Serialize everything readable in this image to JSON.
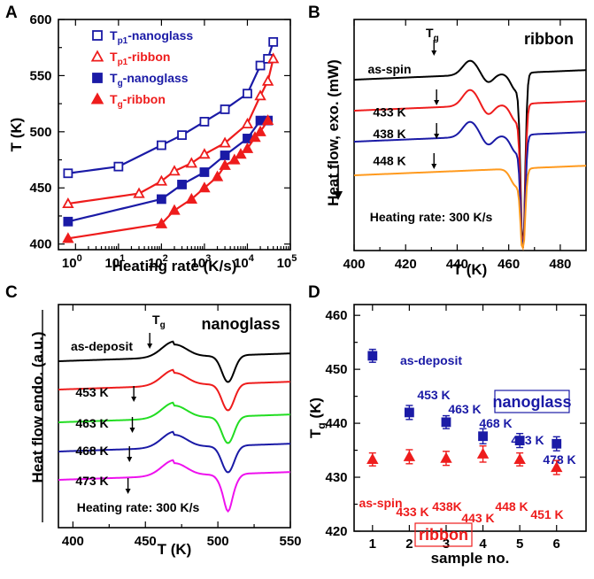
{
  "colors": {
    "blue": "#1a1aa6",
    "red": "#ee1c1c",
    "black": "#000000",
    "green": "#22dd22",
    "orange": "#ff9a1e",
    "magenta": "#ee11ee"
  },
  "chart_data": [
    {
      "panel": "A",
      "type": "scatter",
      "xlabel": "Heating rate (K/s)",
      "ylabel": "T (K)",
      "xscale": "log",
      "xlim": [
        0.4,
        100000
      ],
      "ylim": [
        395,
        600
      ],
      "xticks": [
        "10^0",
        "10^1",
        "10^2",
        "10^3",
        "10^4",
        "10^5"
      ],
      "yticks": [
        "400",
        "450",
        "500",
        "550",
        "600"
      ],
      "series": [
        {
          "name": "Tp1-nanoglass",
          "color": "#1a1aa6",
          "marker": "open-square",
          "x": [
            0.67,
            10,
            100,
            300,
            1000,
            3000,
            10000,
            20000,
            30000,
            40000
          ],
          "y": [
            463,
            469,
            488,
            497,
            509,
            520,
            534,
            559,
            565,
            580
          ]
        },
        {
          "name": "Tp1-ribbon",
          "color": "#ee1c1c",
          "marker": "open-triangle",
          "x": [
            0.67,
            30,
            100,
            200,
            500,
            1000,
            3000,
            10000,
            20000,
            30000,
            40000
          ],
          "y": [
            436,
            445,
            456,
            465,
            472,
            480,
            490,
            507,
            532,
            545,
            565
          ]
        },
        {
          "name": "Tg-nanoglass",
          "color": "#1a1aa6",
          "marker": "filled-square",
          "x": [
            0.67,
            100,
            300,
            1000,
            3000,
            10000,
            20000,
            30000
          ],
          "y": [
            420,
            440,
            453,
            464,
            479,
            494,
            510,
            510
          ]
        },
        {
          "name": "Tg-ribbon",
          "color": "#ee1c1c",
          "marker": "filled-triangle",
          "x": [
            0.67,
            100,
            200,
            500,
            1000,
            2000,
            3000,
            5000,
            7000,
            10000,
            15000,
            20000,
            30000
          ],
          "y": [
            405,
            418,
            430,
            440,
            450,
            460,
            470,
            475,
            480,
            485,
            495,
            500,
            510
          ]
        }
      ],
      "legend": [
        "Tp1-nanoglass",
        "Tp1-ribbon",
        "Tg-nanoglass",
        "Tg-ribbon"
      ]
    },
    {
      "panel": "B",
      "type": "line",
      "title": "ribbon",
      "xlabel": "T (K)",
      "ylabel": "Heat flow, exo. (mW)",
      "xlim": [
        400,
        490
      ],
      "xticks": [
        "400",
        "420",
        "440",
        "460",
        "480"
      ],
      "marker_label": "Tg",
      "note": "Heating rate: 300 K/s",
      "series": [
        {
          "name": "as-spin",
          "color": "#000000",
          "glass_transition": 431
        },
        {
          "name": "433 K",
          "color": "#ee1c1c",
          "glass_transition": 432
        },
        {
          "name": "438 K",
          "color": "#1a1aa6",
          "glass_transition": 432
        },
        {
          "name": "448 K",
          "color": "#ff9a1e",
          "glass_transition": 431
        }
      ]
    },
    {
      "panel": "C",
      "type": "line",
      "title": "nanoglass",
      "xlabel": "T (K)",
      "ylabel": "Heat flow endo. (a.u.)",
      "xlim": [
        390,
        550
      ],
      "xticks": [
        "400",
        "450",
        "500",
        "550"
      ],
      "marker_label": "Tg",
      "note": "Heating rate: 300 K/s",
      "series": [
        {
          "name": "as-deposit",
          "color": "#000000",
          "glass_transition": 453
        },
        {
          "name": "453 K",
          "color": "#ee1c1c",
          "glass_transition": 442
        },
        {
          "name": "463 K",
          "color": "#22dd22",
          "glass_transition": 441
        },
        {
          "name": "468 K",
          "color": "#1a1aa6",
          "glass_transition": 439
        },
        {
          "name": "473 K",
          "color": "#ee11ee",
          "glass_transition": 438
        }
      ]
    },
    {
      "panel": "D",
      "type": "scatter",
      "xlabel": "sample no.",
      "ylabel": "Tg (K)",
      "xlim": [
        0.5,
        6.8
      ],
      "ylim": [
        420,
        462
      ],
      "xticks": [
        "1",
        "2",
        "3",
        "4",
        "5",
        "6"
      ],
      "yticks": [
        "420",
        "430",
        "440",
        "450",
        "460"
      ],
      "series": [
        {
          "name": "nanoglass",
          "color": "#1a1aa6",
          "marker": "filled-square",
          "x": [
            1,
            2,
            3,
            4,
            5,
            6
          ],
          "y": [
            452.5,
            442,
            440.2,
            437.6,
            436.8,
            436.2
          ],
          "err": [
            1.2,
            1.3,
            1.2,
            1.4,
            1.3,
            1.3
          ],
          "labels": [
            "as-deposit",
            "453 K",
            "463 K",
            "468 K",
            "473 K",
            "478 K"
          ]
        },
        {
          "name": "ribbon",
          "color": "#ee1c1c",
          "marker": "filled-triangle",
          "x": [
            1,
            2,
            3,
            4,
            5,
            6
          ],
          "y": [
            433.3,
            433.8,
            433.5,
            434.3,
            433.3,
            431.8
          ],
          "err": [
            1.2,
            1.3,
            1.3,
            1.5,
            1.2,
            1.3
          ],
          "labels": [
            "as-spin",
            "433 K",
            "438K",
            "443 K",
            "448 K",
            "451 K"
          ]
        }
      ]
    }
  ],
  "panel_labels": [
    "A",
    "B",
    "C",
    "D"
  ]
}
